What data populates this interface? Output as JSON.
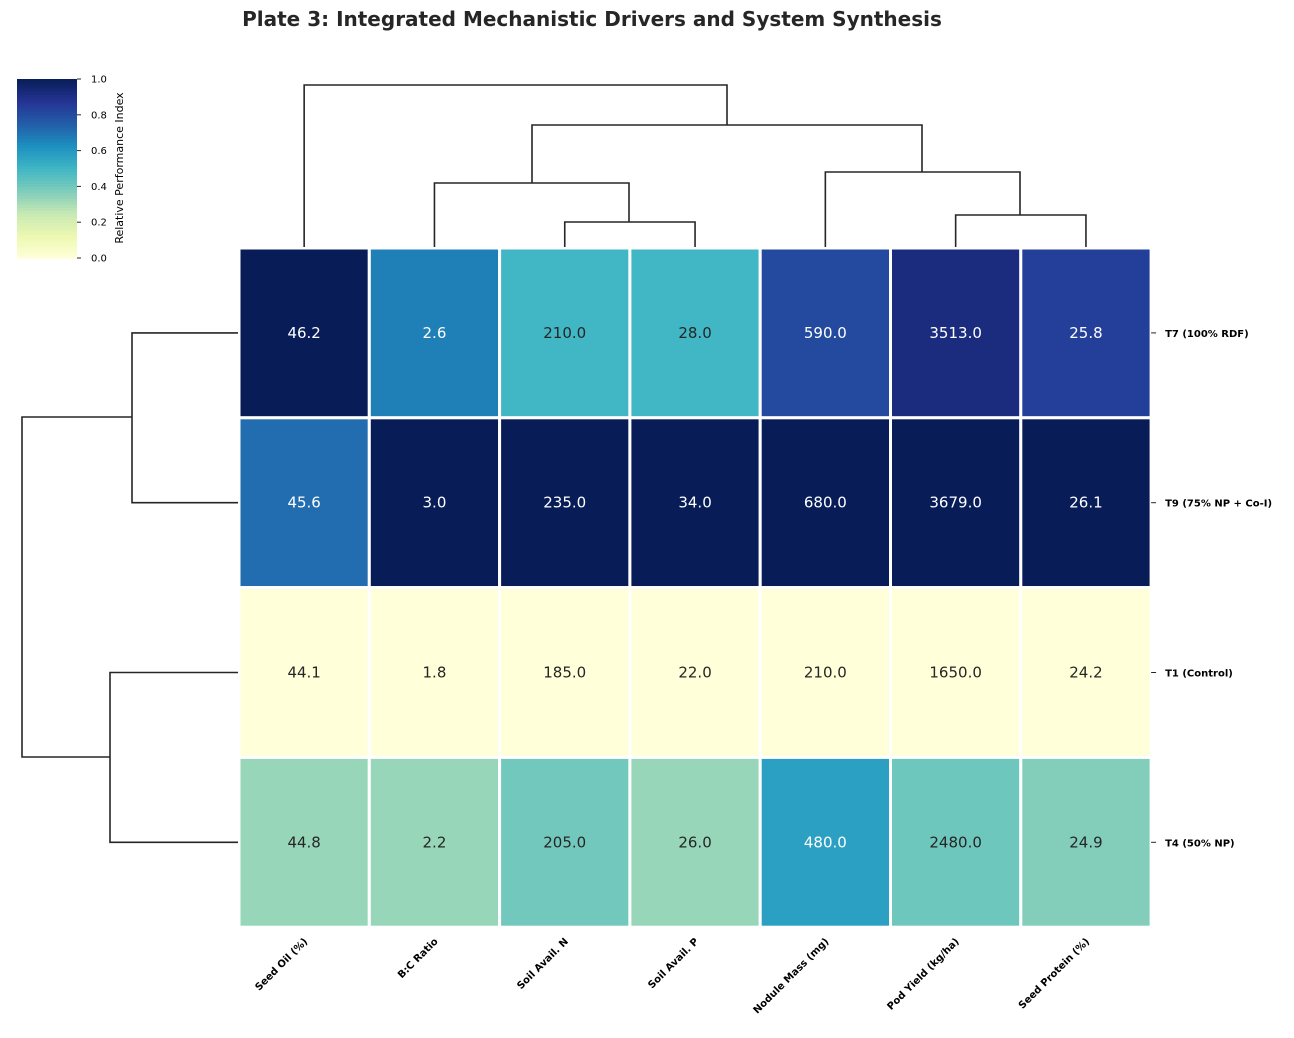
{
  "chart_data": {
    "type": "heatmap",
    "title": "Plate 3: Integrated Mechanistic Drivers and System Synthesis",
    "columns": [
      "Seed Oil (%)",
      "B:C Ratio",
      "Soil Avail. N",
      "Soil Avail. P",
      "Nodule Mass (mg)",
      "Pod Yield (kg/ha)",
      "Seed Protein (%)"
    ],
    "rows": [
      "T7 (100% RDF)",
      "T9 (75% NP + Co-I)",
      "T1 (Control)",
      "T4 (50% NP)"
    ],
    "values": [
      [
        46.2,
        2.6,
        210.0,
        28.0,
        590.0,
        3513.0,
        25.8
      ],
      [
        45.6,
        3.0,
        235.0,
        34.0,
        680.0,
        3679.0,
        26.1
      ],
      [
        44.1,
        1.8,
        185.0,
        22.0,
        210.0,
        1650.0,
        24.2
      ],
      [
        44.8,
        2.2,
        205.0,
        26.0,
        480.0,
        2480.0,
        24.9
      ]
    ],
    "normalization": "column min-max",
    "colormap": [
      "#ffffd9",
      "#edf8b1",
      "#c7e9b4",
      "#7fcdbb",
      "#41b6c4",
      "#1d91c0",
      "#225ea8",
      "#253494",
      "#081d58"
    ],
    "colorbar": {
      "label": "Relative Performance Index",
      "ticks": [
        "0.0",
        "0.2",
        "0.4",
        "0.6",
        "0.8",
        "1.0"
      ],
      "range": [
        0,
        1
      ]
    },
    "row_dendrogram": true,
    "col_dendrogram": true
  }
}
